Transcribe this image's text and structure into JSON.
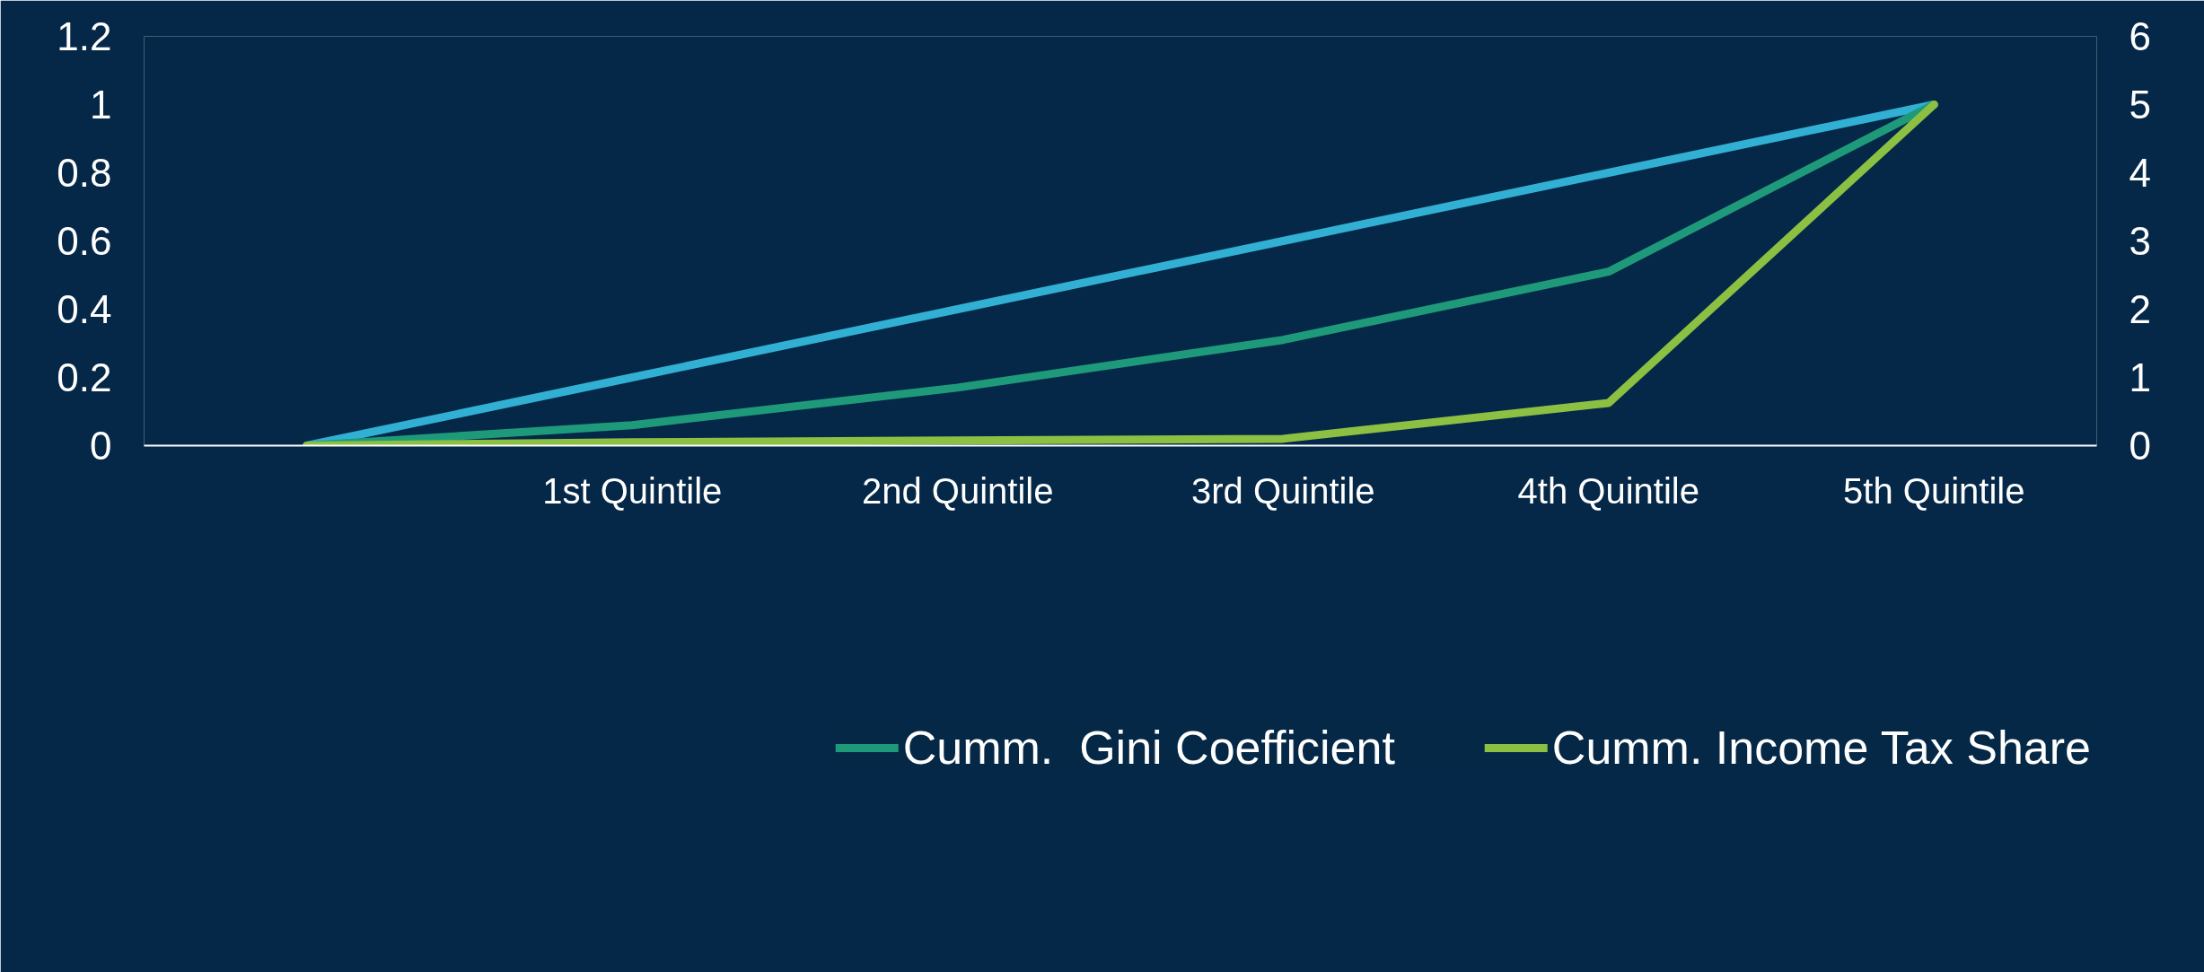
{
  "chart_data": {
    "type": "line",
    "categories": [
      null,
      "1st Quintile",
      "2nd Quintile",
      "3rd Quintile",
      "4th Quintile",
      "5th Quintile"
    ],
    "series": [
      {
        "color": "#31b0d3",
        "axis": "y2",
        "values": [
          0,
          1,
          2,
          3,
          4,
          5
        ]
      },
      {
        "name": "Cumm.  Gini Coefficient",
        "color": "#1e9a7b",
        "values": [
          0,
          0.06,
          0.17,
          0.31,
          0.51,
          1.0
        ]
      },
      {
        "name": "Cumm. Income Tax Share",
        "color": "#8bc043",
        "values": [
          0,
          0.01,
          0.015,
          0.02,
          0.125,
          1.0
        ]
      }
    ],
    "ylim": [
      0,
      1.2
    ],
    "yticks": [
      0,
      0.2,
      0.4,
      0.6,
      0.8,
      1,
      1.2
    ],
    "y2lim": [
      0,
      6
    ],
    "y2ticks": [
      0,
      1,
      2,
      3,
      4,
      5,
      6
    ],
    "grid": false,
    "legend": "bottom",
    "marker": "none",
    "line_style": "solid"
  }
}
